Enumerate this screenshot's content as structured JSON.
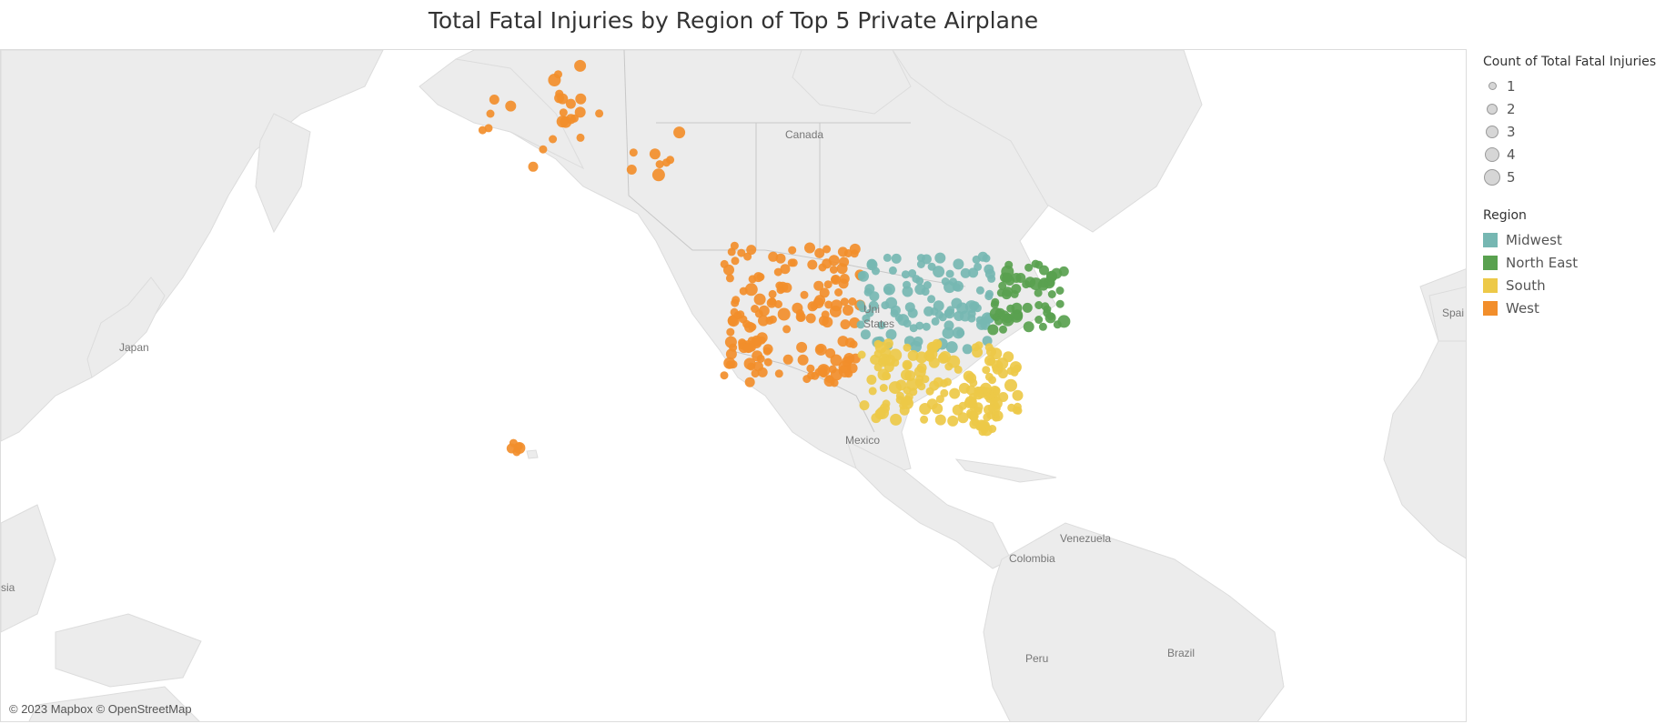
{
  "title": "Total Fatal Injuries by Region of Top 5 Private Airplane",
  "attribution": "© 2023 Mapbox © OpenStreetMap",
  "map_labels": {
    "canada": "Canada",
    "japan": "Japan",
    "united_states_1": "Uni",
    "united_states_2": "States",
    "mexico": "Mexico",
    "colombia": "Colombia",
    "venezuela": "Venezuela",
    "peru": "Peru",
    "brazil": "Brazil",
    "spain": "Spai",
    "asia": "sia"
  },
  "legend": {
    "size_title": "Count of Total Fatal Injuries",
    "sizes": [
      "1",
      "2",
      "3",
      "4",
      "5"
    ],
    "color_title": "Region",
    "regions": [
      {
        "label": "Midwest",
        "color": "#76b7b2"
      },
      {
        "label": "North East",
        "color": "#59a14f"
      },
      {
        "label": "South",
        "color": "#edc948"
      },
      {
        "label": "West",
        "color": "#f28e2b"
      }
    ]
  },
  "colors": {
    "midwest": "#76b7b2",
    "north_east": "#59a14f",
    "south": "#edc948",
    "west": "#f28e2b",
    "land": "#ececec",
    "water": "#ffffff"
  }
}
